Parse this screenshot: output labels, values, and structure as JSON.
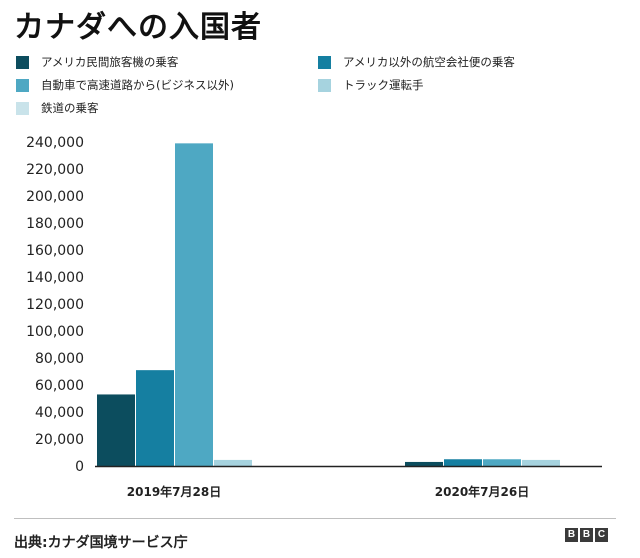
{
  "title": "カナダへの入国者",
  "chart_data": {
    "type": "bar",
    "categories": [
      "2019年7月28日",
      "2020年7月26日"
    ],
    "series": [
      {
        "name": "アメリカ民間旅客機の乗客",
        "color": "#0c4d5e",
        "values": [
          53000,
          3000
        ]
      },
      {
        "name": "アメリカ以外の航空会社便の乗客",
        "color": "#157fa1",
        "values": [
          71000,
          5000
        ]
      },
      {
        "name": "自動車で高速道路から(ビジネス以外)",
        "color": "#4ea8c3",
        "values": [
          239000,
          5000
        ]
      },
      {
        "name": "トラック運転手",
        "color": "#a6d3df",
        "values": [
          4500,
          4500
        ]
      },
      {
        "name": "鉄道の乗客",
        "color": "#c9e3ea",
        "values": [
          0,
          0
        ]
      }
    ],
    "yticks": [
      "0",
      "20,000",
      "40,000",
      "60,000",
      "80,000",
      "100,000",
      "120,000",
      "140,000",
      "160,000",
      "180,000",
      "200,000",
      "220,000",
      "240,000"
    ],
    "ylim": [
      0,
      240000
    ],
    "legend_position": "top"
  },
  "source": "出典:カナダ国境サービス庁",
  "logo": [
    "B",
    "B",
    "C"
  ]
}
